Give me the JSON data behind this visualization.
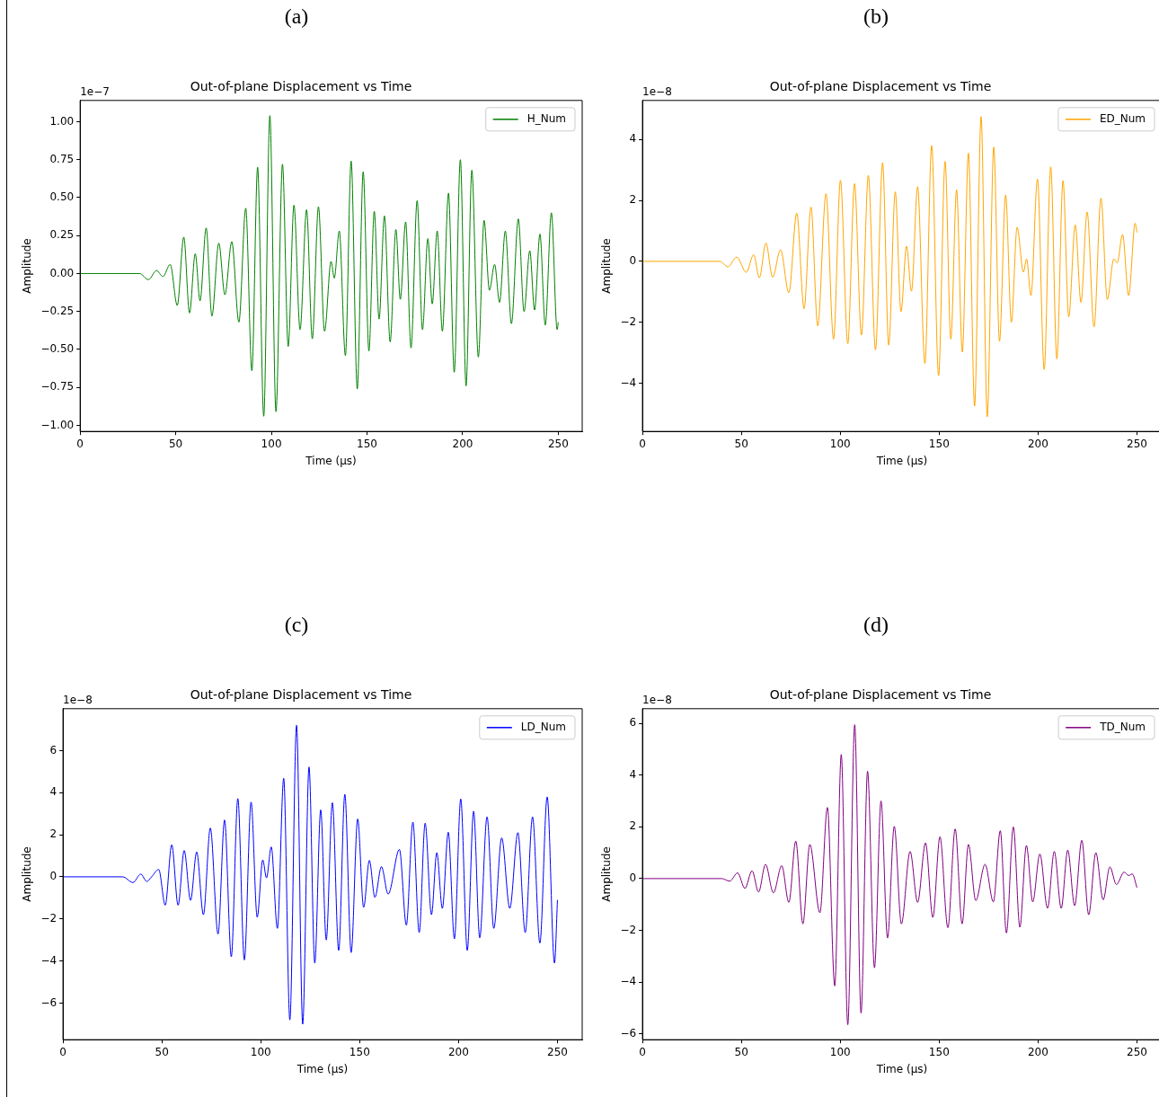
{
  "chart_data": [
    {
      "type": "line",
      "title": "Out-of-plane Displacement vs Time",
      "xlabel": "Time (µs)",
      "ylabel": "Amplitude",
      "annotations": [
        "(a)",
        "1e−7"
      ],
      "legend": "top right",
      "grid": false,
      "xlim": [
        0,
        262.5
      ],
      "xticks": [
        0,
        50,
        100,
        150,
        200,
        250
      ],
      "ylim": [
        -1.04,
        1.14
      ],
      "yticks": [
        {
          "value": -1,
          "label": "−1.00"
        },
        {
          "value": -0.75,
          "label": "−0.75"
        },
        {
          "value": -0.5,
          "label": "−0.50"
        },
        {
          "value": -0.25,
          "label": "−0.25"
        },
        {
          "value": 0,
          "label": "0.00"
        },
        {
          "value": 0.25,
          "label": "0.25"
        },
        {
          "value": 0.5,
          "label": "0.50"
        },
        {
          "value": 0.75,
          "label": "0.75"
        },
        {
          "value": 1,
          "label": "1.00"
        }
      ],
      "series": [
        {
          "name": "H_Num",
          "color": "#008000",
          "x": [
            0,
            31,
            35.8,
            39.9,
            43.3,
            47.1,
            50.8,
            54.2,
            57.2,
            60.2,
            62.7,
            65.9,
            68.9,
            72.5,
            75.7,
            79.3,
            83.0,
            86.6,
            89.8,
            92.8,
            96.0,
            99.2,
            102.4,
            105.8,
            108.8,
            111.8,
            115.0,
            118.4,
            121.4,
            124.6,
            127.8,
            131.2,
            132.9,
            135.5,
            138.7,
            141.7,
            144.9,
            148.0,
            151.0,
            153.8,
            156.3,
            159.1,
            162.1,
            165.1,
            167.4,
            170.2,
            173.0,
            176.2,
            179.0,
            181.8,
            184.1,
            186.7,
            189.4,
            192.6,
            195.6,
            198.8,
            201.8,
            204.8,
            208.2,
            211.2,
            214.0,
            216.7,
            219.3,
            222.3,
            225.5,
            229.1,
            232.1,
            235.1,
            237.6,
            240.4,
            243.2,
            246.4,
            249.4,
            250
          ],
          "values": [
            0,
            0,
            -0.04,
            0.02,
            -0.02,
            0.06,
            -0.21,
            0.24,
            -0.26,
            0.13,
            -0.18,
            0.3,
            -0.28,
            0.2,
            -0.14,
            0.21,
            -0.32,
            0.43,
            -0.64,
            0.7,
            -0.94,
            1.04,
            -0.91,
            0.72,
            -0.48,
            0.45,
            -0.37,
            0.42,
            -0.43,
            0.44,
            -0.38,
            0.08,
            -0.03,
            0.28,
            -0.54,
            0.74,
            -0.76,
            0.67,
            -0.51,
            0.41,
            -0.3,
            0.38,
            -0.45,
            0.29,
            -0.17,
            0.34,
            -0.49,
            0.48,
            -0.37,
            0.23,
            -0.2,
            0.28,
            -0.38,
            0.53,
            -0.65,
            0.75,
            -0.74,
            0.68,
            -0.55,
            0.35,
            -0.11,
            0.06,
            -0.19,
            0.28,
            -0.33,
            0.36,
            -0.25,
            0.15,
            -0.24,
            0.26,
            -0.34,
            0.4,
            -0.37,
            -0.32
          ]
        }
      ]
    },
    {
      "type": "line",
      "title": "Out-of-plane Displacement vs Time",
      "xlabel": "Time (µs)",
      "ylabel": "Amplitude",
      "annotations": [
        "(b)",
        "1e−8"
      ],
      "legend": "top right",
      "grid": false,
      "xlim": [
        0,
        262.5
      ],
      "xticks": [
        0,
        50,
        100,
        150,
        200,
        250
      ],
      "ylim": [
        -5.58,
        5.28
      ],
      "yticks": [
        {
          "value": -4,
          "label": "−4"
        },
        {
          "value": -2,
          "label": "−2"
        },
        {
          "value": 0,
          "label": "0"
        },
        {
          "value": 2,
          "label": "2"
        },
        {
          "value": 4,
          "label": "4"
        }
      ],
      "series": [
        {
          "name": "ED_Num",
          "color": "#ffa500",
          "x": [
            0,
            39.2,
            43.2,
            47.6,
            52.5,
            56.2,
            59.1,
            62.4,
            65.8,
            69.8,
            74.0,
            78.0,
            81.7,
            85.2,
            88.6,
            92.8,
            96.6,
            100.1,
            103.8,
            107.2,
            110.7,
            114.2,
            117.8,
            121.4,
            124.5,
            127.8,
            130.7,
            133.5,
            136.0,
            139.1,
            142.8,
            146.2,
            149.7,
            153.0,
            155.9,
            158.8,
            161.7,
            164.8,
            167.9,
            171.2,
            174.3,
            177.6,
            180.5,
            183.6,
            186.5,
            189.4,
            192.6,
            194.2,
            196.4,
            199.7,
            203.1,
            206.4,
            209.5,
            212.6,
            215.5,
            218.8,
            221.7,
            224.8,
            228.3,
            231.8,
            235.0,
            238.3,
            240.0,
            242.7,
            245.8,
            249.1,
            250
          ],
          "values": [
            0,
            0,
            -0.18,
            0.14,
            -0.36,
            0.22,
            -0.54,
            0.6,
            -0.52,
            0.38,
            -1.03,
            1.58,
            -1.55,
            1.78,
            -2.12,
            2.22,
            -2.55,
            2.66,
            -2.7,
            2.55,
            -2.42,
            2.82,
            -2.9,
            3.24,
            -2.75,
            2.28,
            -1.65,
            0.5,
            -0.98,
            2.45,
            -3.35,
            3.8,
            -3.75,
            3.28,
            -2.55,
            2.35,
            -2.98,
            3.55,
            -4.75,
            4.75,
            -5.1,
            3.75,
            -2.62,
            2.18,
            -2.0,
            1.12,
            -0.35,
            0.08,
            -1.12,
            2.7,
            -3.55,
            3.1,
            -3.2,
            2.65,
            -1.82,
            1.2,
            -1.35,
            1.62,
            -2.15,
            2.07,
            -1.25,
            0.08,
            -0.05,
            0.88,
            -1.12,
            1.25,
            0.95
          ]
        }
      ]
    },
    {
      "type": "line",
      "title": "Out-of-plane Displacement vs Time",
      "xlabel": "Time (µs)",
      "ylabel": "Amplitude",
      "annotations": [
        "(c)",
        "1e−8"
      ],
      "legend": "top right",
      "grid": false,
      "xlim": [
        0,
        262.5
      ],
      "xticks": [
        0,
        50,
        100,
        150,
        200,
        250
      ],
      "ylim": [
        -7.74,
        7.99
      ],
      "yticks": [
        {
          "value": -6,
          "label": "−6"
        },
        {
          "value": -4,
          "label": "−4"
        },
        {
          "value": -2,
          "label": "−2"
        },
        {
          "value": 0,
          "label": "0"
        },
        {
          "value": 2,
          "label": "2"
        },
        {
          "value": 4,
          "label": "4"
        },
        {
          "value": 6,
          "label": "6"
        }
      ],
      "series": [
        {
          "name": "LD_Num",
          "color": "#0000ff",
          "x": [
            0,
            30.2,
            35.4,
            39.3,
            42.4,
            44.8,
            48.4,
            51.7,
            55.0,
            58.2,
            61.3,
            64.5,
            67.6,
            71.0,
            74.5,
            78.4,
            81.7,
            85.1,
            88.4,
            91.7,
            95.1,
            98.2,
            101.0,
            102.9,
            105.3,
            108.4,
            111.6,
            114.7,
            118.1,
            121.2,
            124.4,
            127.3,
            130.3,
            133.1,
            136.2,
            139.4,
            142.5,
            145.7,
            149.0,
            152.0,
            154.9,
            157.7,
            161.0,
            164.4,
            170.1,
            173.6,
            176.9,
            180.1,
            183.1,
            186.3,
            189.0,
            191.8,
            194.8,
            197.9,
            201.1,
            204.4,
            207.6,
            210.7,
            214.4,
            217.8,
            221.8,
            225.9,
            230.0,
            233.7,
            237.4,
            241.1,
            244.8,
            248.5,
            250
          ],
          "values": [
            0,
            0,
            -0.27,
            0.13,
            -0.22,
            0.0,
            0.35,
            -1.35,
            1.52,
            -1.35,
            1.25,
            -1.12,
            1.18,
            -1.8,
            2.32,
            -2.72,
            2.7,
            -3.8,
            3.72,
            -3.95,
            3.55,
            -1.92,
            0.8,
            -0.05,
            1.42,
            -2.45,
            4.68,
            -6.8,
            7.2,
            -7.0,
            5.22,
            -4.1,
            3.18,
            -3.0,
            3.52,
            -3.5,
            3.92,
            -3.6,
            2.75,
            -1.45,
            0.78,
            -0.98,
            0.48,
            -0.82,
            1.3,
            -2.3,
            2.6,
            -2.65,
            2.55,
            -1.8,
            1.15,
            -1.5,
            2.12,
            -2.95,
            3.7,
            -3.5,
            3.12,
            -2.9,
            2.85,
            -2.45,
            1.85,
            -1.5,
            2.1,
            -2.65,
            2.85,
            -3.15,
            3.8,
            -4.1,
            -1.1
          ]
        }
      ]
    },
    {
      "type": "line",
      "title": "Out-of-plane Displacement vs Time",
      "xlabel": "Time (µs)",
      "ylabel": "Amplitude",
      "annotations": [
        "(d)",
        "1e−8"
      ],
      "legend": "top right",
      "grid": false,
      "xlim": [
        0,
        262.5
      ],
      "xticks": [
        0,
        50,
        100,
        150,
        200,
        250
      ],
      "ylim": [
        -6.23,
        6.57
      ],
      "yticks": [
        {
          "value": -6,
          "label": "−6"
        },
        {
          "value": -4,
          "label": "−4"
        },
        {
          "value": -2,
          "label": "−2"
        },
        {
          "value": 0,
          "label": "0"
        },
        {
          "value": 2,
          "label": "2"
        },
        {
          "value": 4,
          "label": "4"
        },
        {
          "value": 6,
          "label": "6"
        }
      ],
      "series": [
        {
          "name": "TD_Num",
          "color": "#800080",
          "x": [
            0,
            40.1,
            44.1,
            48.1,
            51.8,
            55.4,
            58.7,
            62.2,
            66.2,
            70.4,
            74.0,
            77.5,
            81.1,
            84.6,
            89.7,
            93.5,
            97.2,
            100.5,
            103.8,
            107.3,
            110.5,
            113.8,
            117.3,
            120.6,
            123.9,
            127.3,
            130.9,
            135.3,
            139.1,
            143.1,
            146.8,
            150.4,
            154.4,
            158.1,
            161.6,
            164.8,
            168.5,
            173.2,
            177.4,
            180.9,
            184.0,
            187.5,
            190.8,
            194.1,
            197.3,
            200.9,
            204.8,
            208.2,
            211.7,
            215.0,
            218.5,
            222.1,
            225.6,
            229.2,
            232.9,
            236.3,
            239.6,
            243.5,
            245.8,
            247.6,
            250
          ],
          "values": [
            0,
            0,
            -0.1,
            0.22,
            -0.38,
            0.3,
            -0.52,
            0.55,
            -0.55,
            0.5,
            -0.92,
            1.45,
            -1.75,
            1.32,
            -1.32,
            2.75,
            -4.15,
            4.8,
            -5.65,
            5.95,
            -5.2,
            4.15,
            -3.45,
            3.0,
            -2.3,
            2.02,
            -1.75,
            1.05,
            -0.92,
            1.38,
            -1.5,
            1.62,
            -1.9,
            1.92,
            -1.75,
            1.32,
            -0.85,
            0.55,
            -0.9,
            1.85,
            -2.1,
            2.0,
            -1.88,
            1.28,
            -0.9,
            0.95,
            -1.15,
            1.05,
            -1.15,
            1.1,
            -1.05,
            1.48,
            -1.4,
            1.0,
            -0.82,
            0.45,
            -0.23,
            0.25,
            0.12,
            0.18,
            -0.35
          ]
        }
      ]
    }
  ]
}
